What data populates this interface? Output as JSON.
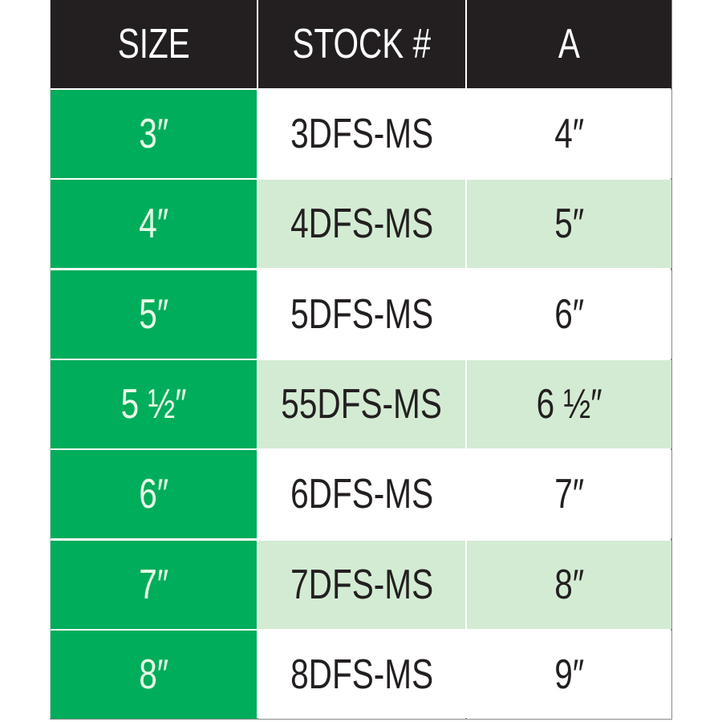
{
  "colors": {
    "header_bg": "#231f20",
    "size_col_bg": "#00ad5a",
    "alt_row_bg": "#d3ebd3",
    "text": "#231f20"
  },
  "headers": [
    "SIZE",
    "STOCK #",
    "A"
  ],
  "rows": [
    {
      "size": "3″",
      "stock": "3DFS-MS",
      "a": "4″"
    },
    {
      "size": "4″",
      "stock": "4DFS-MS",
      "a": "5″"
    },
    {
      "size": "5″",
      "stock": "5DFS-MS",
      "a": "6″"
    },
    {
      "size": "5 ½″",
      "stock": "55DFS-MS",
      "a": "6 ½″"
    },
    {
      "size": "6″",
      "stock": "6DFS-MS",
      "a": "7″"
    },
    {
      "size": "7″",
      "stock": "7DFS-MS",
      "a": "8″"
    },
    {
      "size": "8″",
      "stock": "8DFS-MS",
      "a": "9″"
    }
  ]
}
